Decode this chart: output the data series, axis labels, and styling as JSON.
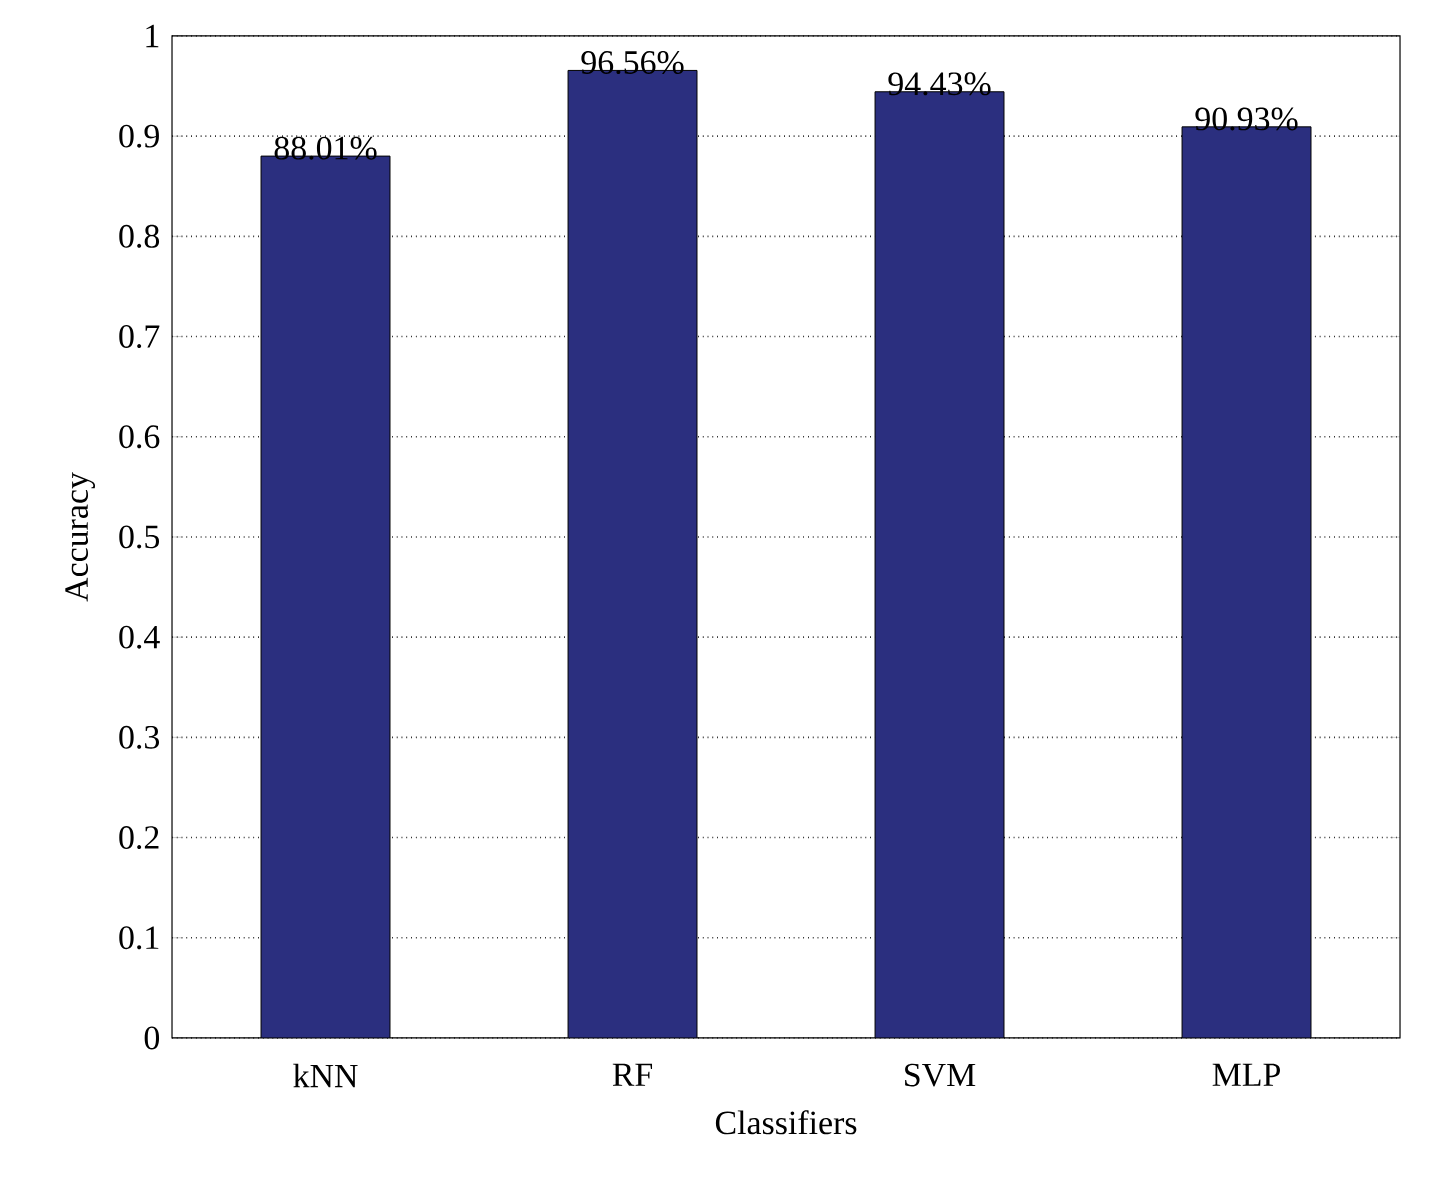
{
  "chart_data": {
    "type": "bar",
    "xlabel": "Classifiers",
    "ylabel": "Accuracy",
    "categories": [
      "kNN",
      "RF",
      "SVM",
      "MLP"
    ],
    "values": [
      0.8801,
      0.9656,
      0.9443,
      0.9093
    ],
    "value_labels": [
      "88.01%",
      "96.56%",
      "94.43%",
      "90.93%"
    ],
    "color": "#2b2f7f",
    "ylim": [
      0,
      1
    ],
    "yticks": [
      0,
      0.1,
      0.2,
      0.3,
      0.4,
      0.5,
      0.6,
      0.7,
      0.8,
      0.9,
      1
    ],
    "grid": "y"
  }
}
